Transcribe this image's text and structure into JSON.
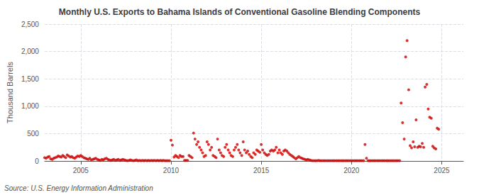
{
  "chart_data": {
    "type": "scatter",
    "title": "Monthly U.S. Exports to Bahama Islands of Conventional Gasoline Blending Components",
    "ylabel": "Thousand Barrels",
    "source": "Source: U.S. Energy Information Administration",
    "color": "#cc0000",
    "marker": "circle",
    "grid": true,
    "xlim": [
      2003.0,
      2026.2
    ],
    "xticks": [
      2005,
      2010,
      2015,
      2020,
      2025
    ],
    "ylim": [
      0,
      2500
    ],
    "yticks": [
      0,
      500,
      {
        "value": 1000,
        "label": "1,000"
      },
      {
        "value": 1500,
        "label": "1,500"
      },
      {
        "value": 2000,
        "label": "2,000"
      },
      {
        "value": 2500,
        "label": "2,500"
      }
    ],
    "x": [
      2003.0,
      2003.08,
      2003.17,
      2003.25,
      2003.33,
      2003.42,
      2003.5,
      2003.58,
      2003.67,
      2003.75,
      2003.83,
      2003.92,
      2004.0,
      2004.08,
      2004.17,
      2004.25,
      2004.33,
      2004.42,
      2004.5,
      2004.58,
      2004.67,
      2004.75,
      2004.83,
      2004.92,
      2005.0,
      2005.08,
      2005.17,
      2005.25,
      2005.33,
      2005.42,
      2005.5,
      2005.58,
      2005.67,
      2005.75,
      2005.83,
      2005.92,
      2006.0,
      2006.08,
      2006.17,
      2006.25,
      2006.33,
      2006.42,
      2006.5,
      2006.58,
      2006.67,
      2006.75,
      2006.83,
      2006.92,
      2007.0,
      2007.08,
      2007.17,
      2007.25,
      2007.33,
      2007.42,
      2007.5,
      2007.58,
      2007.67,
      2007.75,
      2007.83,
      2007.92,
      2008.0,
      2008.08,
      2008.17,
      2008.25,
      2008.33,
      2008.42,
      2008.5,
      2008.58,
      2008.67,
      2008.75,
      2008.83,
      2008.92,
      2009.0,
      2009.08,
      2009.17,
      2009.25,
      2009.33,
      2009.42,
      2009.5,
      2009.58,
      2009.67,
      2009.75,
      2009.83,
      2009.92,
      2010.0,
      2010.08,
      2010.17,
      2010.25,
      2010.33,
      2010.42,
      2010.5,
      2010.58,
      2010.67,
      2010.75,
      2010.83,
      2010.92,
      2011.0,
      2011.08,
      2011.17,
      2011.25,
      2011.33,
      2011.42,
      2011.5,
      2011.58,
      2011.67,
      2011.75,
      2011.83,
      2011.92,
      2012.0,
      2012.08,
      2012.17,
      2012.25,
      2012.33,
      2012.42,
      2012.5,
      2012.58,
      2012.67,
      2012.75,
      2012.83,
      2012.92,
      2013.0,
      2013.08,
      2013.17,
      2013.25,
      2013.33,
      2013.42,
      2013.5,
      2013.58,
      2013.67,
      2013.75,
      2013.83,
      2013.92,
      2014.0,
      2014.08,
      2014.17,
      2014.25,
      2014.33,
      2014.42,
      2014.5,
      2014.58,
      2014.67,
      2014.75,
      2014.83,
      2014.92,
      2015.0,
      2015.08,
      2015.17,
      2015.25,
      2015.33,
      2015.42,
      2015.5,
      2015.58,
      2015.67,
      2015.75,
      2015.83,
      2015.92,
      2016.0,
      2016.08,
      2016.17,
      2016.25,
      2016.33,
      2016.42,
      2016.5,
      2016.58,
      2016.67,
      2016.75,
      2016.83,
      2016.92,
      2017.0,
      2017.08,
      2017.17,
      2017.25,
      2017.33,
      2017.42,
      2017.5,
      2017.58,
      2017.67,
      2017.75,
      2017.83,
      2017.92,
      2018.0,
      2018.08,
      2018.17,
      2018.25,
      2018.33,
      2018.42,
      2018.5,
      2018.58,
      2018.67,
      2018.75,
      2018.83,
      2018.92,
      2019.0,
      2019.08,
      2019.17,
      2019.25,
      2019.33,
      2019.42,
      2019.5,
      2019.58,
      2019.67,
      2019.75,
      2019.83,
      2019.92,
      2020.0,
      2020.08,
      2020.17,
      2020.25,
      2020.33,
      2020.42,
      2020.5,
      2020.58,
      2020.67,
      2020.75,
      2020.83,
      2020.92,
      2021.0,
      2021.08,
      2021.17,
      2021.25,
      2021.33,
      2021.42,
      2021.5,
      2021.58,
      2021.67,
      2021.75,
      2021.83,
      2021.92,
      2022.0,
      2022.08,
      2022.17,
      2022.25,
      2022.33,
      2022.42,
      2022.5,
      2022.58,
      2022.67,
      2022.75,
      2022.83,
      2022.92,
      2023.0,
      2023.08,
      2023.17,
      2023.25,
      2023.33,
      2023.42,
      2023.5,
      2023.58,
      2023.67,
      2023.75,
      2023.83,
      2023.92,
      2024.0,
      2024.08,
      2024.17,
      2024.25,
      2024.33,
      2024.42,
      2024.5,
      2024.58,
      2024.67,
      2024.75,
      2024.83
    ],
    "values": [
      60,
      50,
      70,
      80,
      40,
      30,
      50,
      60,
      70,
      90,
      80,
      70,
      100,
      80,
      60,
      110,
      90,
      70,
      80,
      60,
      50,
      70,
      90,
      80,
      100,
      80,
      60,
      50,
      40,
      30,
      50,
      20,
      30,
      40,
      50,
      30,
      20,
      10,
      30,
      20,
      40,
      50,
      30,
      20,
      10,
      20,
      30,
      10,
      20,
      30,
      10,
      20,
      30,
      20,
      10,
      5,
      10,
      20,
      10,
      5,
      10,
      20,
      5,
      10,
      5,
      10,
      5,
      10,
      5,
      10,
      5,
      10,
      5,
      10,
      5,
      10,
      5,
      10,
      5,
      10,
      5,
      5,
      5,
      5,
      380,
      290,
      70,
      100,
      80,
      60,
      100,
      80,
      80,
      10,
      10,
      10,
      100,
      80,
      60,
      510,
      400,
      300,
      350,
      250,
      200,
      150,
      80,
      100,
      350,
      300,
      200,
      250,
      100,
      80,
      60,
      400,
      200,
      150,
      100,
      80,
      250,
      300,
      200,
      150,
      100,
      80,
      200,
      250,
      300,
      200,
      150,
      100,
      350,
      200,
      150,
      180,
      120,
      80,
      60,
      150,
      120,
      200,
      180,
      160,
      300,
      200,
      150,
      120,
      100,
      120,
      180,
      200,
      180,
      200,
      250,
      150,
      200,
      150,
      120,
      180,
      200,
      180,
      150,
      120,
      100,
      80,
      60,
      40,
      60,
      80,
      60,
      50,
      40,
      30,
      20,
      30,
      20,
      10,
      5,
      5,
      5,
      5,
      10,
      5,
      5,
      5,
      5,
      5,
      5,
      5,
      5,
      5,
      5,
      5,
      5,
      5,
      5,
      5,
      5,
      5,
      5,
      5,
      5,
      5,
      5,
      5,
      5,
      5,
      5,
      5,
      5,
      5,
      5,
      300,
      50,
      5,
      5,
      5,
      5,
      5,
      5,
      5,
      5,
      5,
      5,
      5,
      5,
      5,
      5,
      5,
      5,
      5,
      5,
      5,
      5,
      5,
      5,
      1060,
      700,
      400,
      1900,
      2200,
      1300,
      280,
      240,
      350,
      260,
      750,
      250,
      270,
      260,
      320,
      250,
      1350,
      1400,
      950,
      800,
      780,
      270,
      240,
      220,
      600,
      580
    ]
  }
}
